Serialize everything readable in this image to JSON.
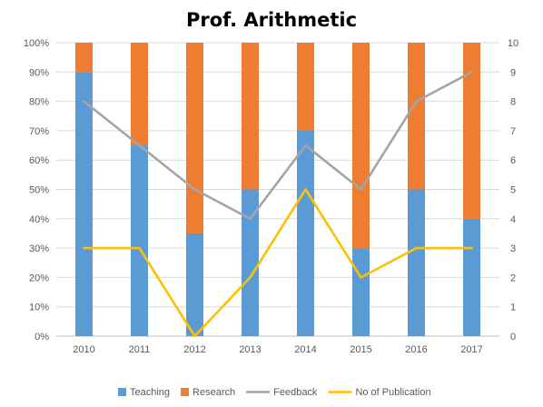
{
  "chart_data": {
    "type": "bar",
    "subtype": "stacked-percent-bar-with-lines",
    "title": "Prof. Arithmetic",
    "categories": [
      "2010",
      "2011",
      "2012",
      "2013",
      "2014",
      "2015",
      "2016",
      "2017"
    ],
    "series": [
      {
        "name": "Teaching",
        "type": "bar",
        "axis": "left",
        "values": [
          90,
          65,
          35,
          50,
          70,
          30,
          50,
          40
        ],
        "color": "#5b9bd5"
      },
      {
        "name": "Research",
        "type": "bar",
        "axis": "left",
        "values": [
          10,
          35,
          65,
          50,
          30,
          70,
          50,
          60
        ],
        "color": "#ed7d31"
      },
      {
        "name": "Feedback",
        "type": "line",
        "axis": "right",
        "values": [
          8,
          6.5,
          5,
          4,
          6.5,
          5,
          8,
          9
        ],
        "color": "#a5a5a5"
      },
      {
        "name": "No of Publication",
        "type": "line",
        "axis": "right",
        "values": [
          3,
          3,
          0,
          2,
          5,
          2,
          3,
          3
        ],
        "color": "#ffc000"
      }
    ],
    "y_left": {
      "min": 0,
      "max": 100,
      "step": 10,
      "tick_labels": [
        "0%",
        "10%",
        "20%",
        "30%",
        "40%",
        "50%",
        "60%",
        "70%",
        "80%",
        "90%",
        "100%"
      ]
    },
    "y_right": {
      "min": 0,
      "max": 10,
      "step": 1,
      "tick_labels": [
        "0",
        "1",
        "2",
        "3",
        "4",
        "5",
        "6",
        "7",
        "8",
        "9",
        "10"
      ]
    },
    "grid": true,
    "legend_position": "bottom"
  }
}
